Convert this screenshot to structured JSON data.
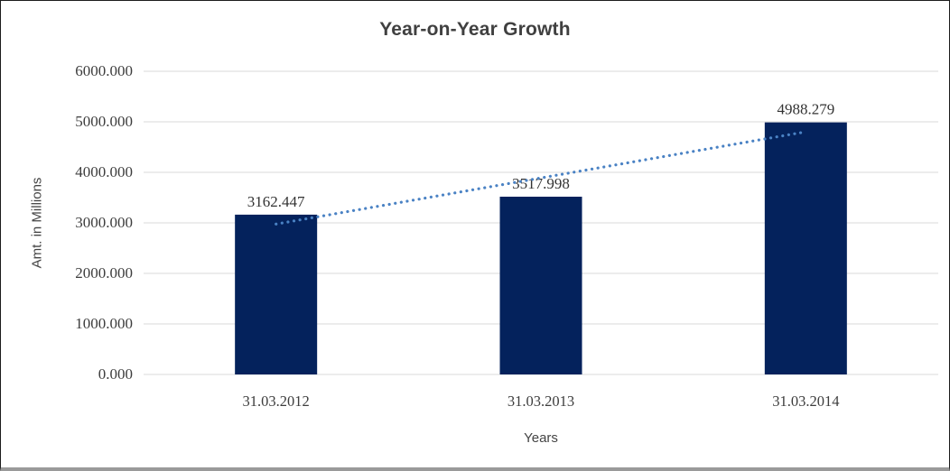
{
  "chart_data": {
    "type": "bar",
    "title": "Year-on-Year Growth",
    "xlabel": "Years",
    "ylabel": "Amt. in Millions",
    "categories": [
      "31.03.2012",
      "31.03.2013",
      "31.03.2014"
    ],
    "values": [
      3162.447,
      3517.998,
      4988.279
    ],
    "data_labels": [
      "3162.447",
      "3517.998",
      "4988.279"
    ],
    "ylim": [
      0,
      6000
    ],
    "ytick_step": 1000,
    "ytick_labels": [
      "0.000",
      "1000.000",
      "2000.000",
      "3000.000",
      "4000.000",
      "5000.000",
      "6000.000"
    ],
    "grid": true,
    "legend": "none",
    "trendline": {
      "type": "linear",
      "style": "dotted"
    },
    "colors": {
      "bar": "#04225c",
      "trendline": "#4a82c4",
      "gridline": "#d9d9d9",
      "title_text": "#404040",
      "axis_title_text": "#444444",
      "tick_text": "#3d3d3d",
      "data_label_text": "#333333",
      "background": "#ffffff"
    }
  }
}
